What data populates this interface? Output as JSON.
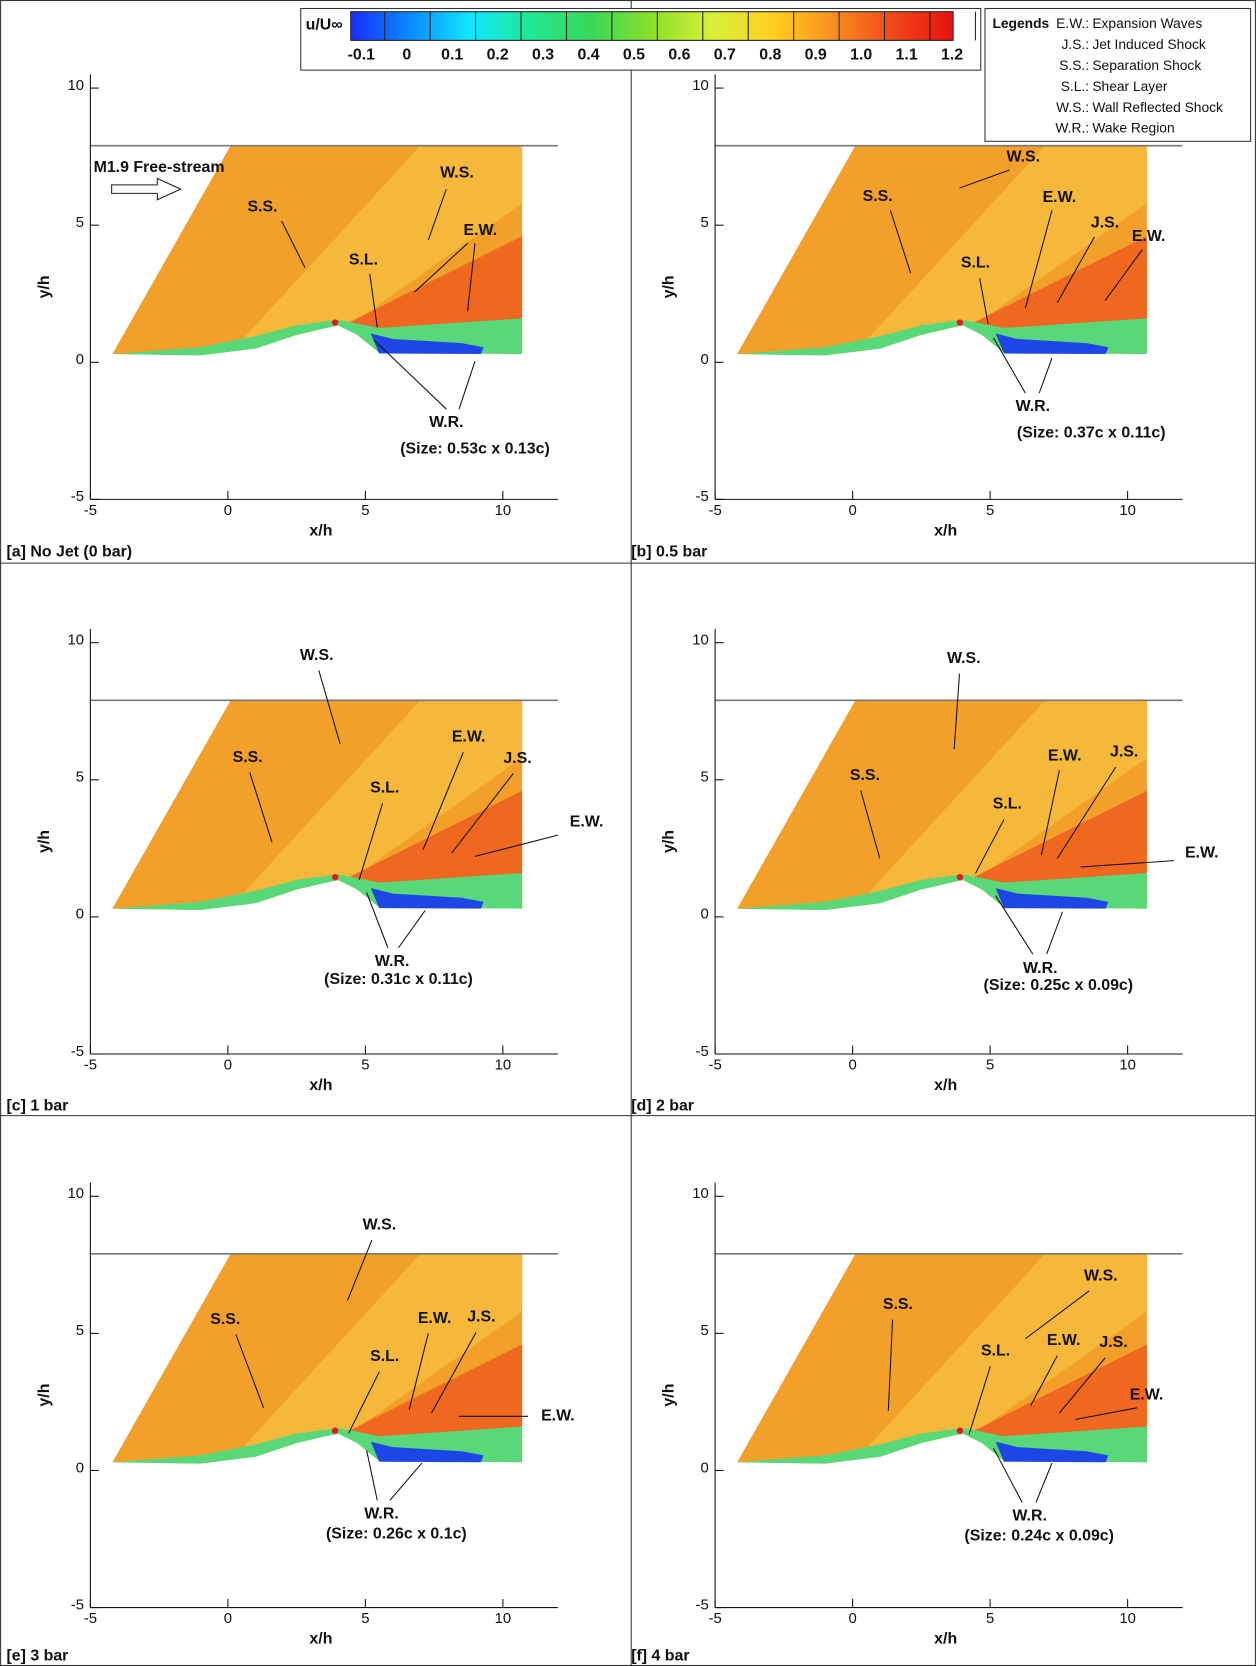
{
  "colorbar": {
    "label": "u/U∞",
    "ticks": [
      -0.1,
      0,
      0.1,
      0.2,
      0.3,
      0.4,
      0.5,
      0.6,
      0.7,
      0.8,
      0.9,
      {
        "value": 1,
        "label": "1.0"
      },
      1.1,
      1.2
    ],
    "colors": [
      "#1a2cff",
      "#0a8cff",
      "#10e8ff",
      "#20e890",
      "#38d858",
      "#8be028",
      "#d8f038",
      "#ffd020",
      "#f89020",
      "#f04818",
      "#e81010"
    ]
  },
  "legend": {
    "title": "Legends",
    "entries": [
      {
        "abbr": "E.W.:",
        "text": "Expansion Waves"
      },
      {
        "abbr": "J.S.:",
        "text": "Jet Induced Shock"
      },
      {
        "abbr": "S.S.:",
        "text": "Separation Shock"
      },
      {
        "abbr": "S.L.:",
        "text": "Shear Layer"
      },
      {
        "abbr": "W.S.:",
        "text": "Wall Reflected Shock"
      },
      {
        "abbr": "W.R.:",
        "text": "Wake Region"
      }
    ]
  },
  "chart_data": [
    {
      "type": "contour",
      "label": "[a] No Jet (0 bar)",
      "inlet_label": "M1.9 Free-stream",
      "xlabel": "x/h",
      "ylabel": "y/h",
      "xlim": [
        -5,
        12
      ],
      "ylim": [
        -5,
        10.5
      ],
      "xticks": [
        -5,
        0,
        5,
        10
      ],
      "yticks": [
        -5,
        0,
        5,
        10
      ],
      "annotations": [
        "S.S.",
        "W.S.",
        "E.W.",
        "S.L.",
        "W.R."
      ],
      "size_label": "(Size: 0.53c x 0.13c)"
    },
    {
      "type": "contour",
      "label": "[b] 0.5 bar",
      "xlabel": "x/h",
      "ylabel": "y/h",
      "xlim": [
        -5,
        12
      ],
      "ylim": [
        -5,
        10.5
      ],
      "xticks": [
        -5,
        0,
        5,
        10
      ],
      "yticks": [
        -5,
        0,
        5,
        10
      ],
      "annotations": [
        "W.S.",
        "S.S.",
        "E.W.",
        "J.S.",
        "E.W.",
        "S.L.",
        "W.R."
      ],
      "size_label": "(Size: 0.37c x 0.11c)"
    },
    {
      "type": "contour",
      "label": "[c] 1 bar",
      "xlabel": "x/h",
      "ylabel": "y/h",
      "xlim": [
        -5,
        12
      ],
      "ylim": [
        -5,
        10.5
      ],
      "xticks": [
        -5,
        0,
        5,
        10
      ],
      "yticks": [
        -5,
        0,
        5,
        10
      ],
      "annotations": [
        "W.S.",
        "S.S.",
        "E.W.",
        "J.S.",
        "E.W.",
        "S.L.",
        "W.R."
      ],
      "size_label": "(Size: 0.31c x 0.11c)"
    },
    {
      "type": "contour",
      "label": "[d] 2 bar",
      "xlabel": "x/h",
      "ylabel": "y/h",
      "xlim": [
        -5,
        12
      ],
      "ylim": [
        -5,
        10.5
      ],
      "xticks": [
        -5,
        0,
        5,
        10
      ],
      "yticks": [
        -5,
        0,
        5,
        10
      ],
      "annotations": [
        "W.S.",
        "S.S.",
        "E.W.",
        "J.S.",
        "E.W.",
        "S.L.",
        "W.R."
      ],
      "size_label": "(Size: 0.25c x 0.09c)"
    },
    {
      "type": "contour",
      "label": "[e] 3 bar",
      "xlabel": "x/h",
      "ylabel": "y/h",
      "xlim": [
        -5,
        12
      ],
      "ylim": [
        -5,
        10.5
      ],
      "xticks": [
        -5,
        0,
        5,
        10
      ],
      "yticks": [
        -5,
        0,
        5,
        10
      ],
      "annotations": [
        "W.S.",
        "S.S.",
        "E.W.",
        "J.S.",
        "E.W.",
        "S.L.",
        "W.R."
      ],
      "size_label": "(Size: 0.26c x 0.1c)"
    },
    {
      "type": "contour",
      "label": "[f] 4 bar",
      "xlabel": "x/h",
      "ylabel": "y/h",
      "xlim": [
        -5,
        12
      ],
      "ylim": [
        -5,
        10.5
      ],
      "xticks": [
        -5,
        0,
        5,
        10
      ],
      "yticks": [
        -5,
        0,
        5,
        10
      ],
      "annotations": [
        "W.S.",
        "S.S.",
        "E.W.",
        "J.S.",
        "E.W.",
        "S.L.",
        "W.R."
      ],
      "size_label": "(Size: 0.24c x 0.09c)"
    }
  ]
}
